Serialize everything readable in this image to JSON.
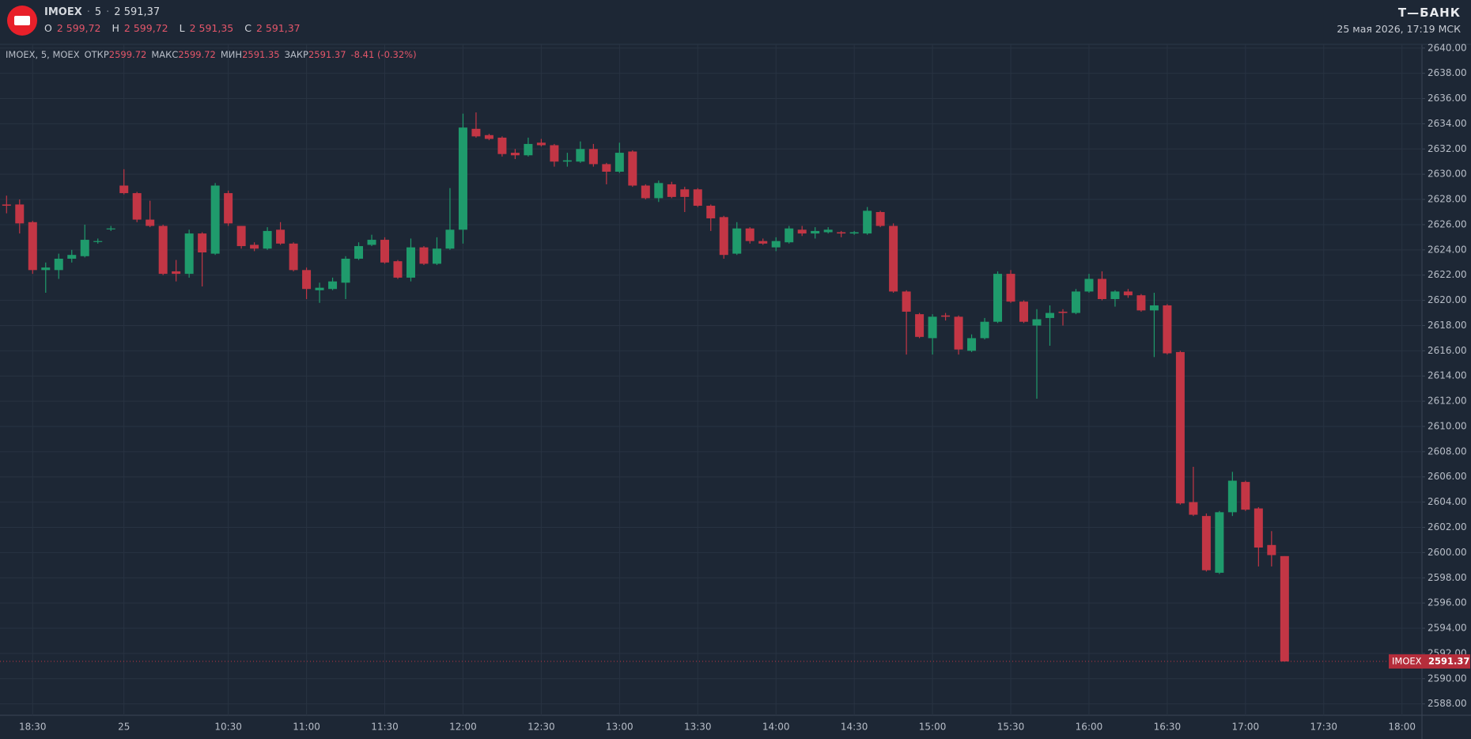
{
  "header": {
    "symbol": "IMOEX",
    "interval": "5",
    "price": "2 591,37",
    "o_label": "O",
    "o_value": "2 599,72",
    "h_label": "H",
    "h_value": "2 599,72",
    "l_label": "L",
    "l_value": "2 591,35",
    "c_label": "C",
    "c_value": "2 591,37",
    "brand": "Т—БАНК",
    "datetime": "25 мая 2026, 17:19 МСК"
  },
  "legend_line": {
    "instrument": "IMOEX, 5, MOEX",
    "open_label": "ОТКР",
    "open": "2599.72",
    "high_label": "МАКС",
    "high": "2599.72",
    "low_label": "МИН",
    "low": "2591.35",
    "close_label": "ЗАКР",
    "close": "2591.37",
    "change": "-8.41 (-0.32%)"
  },
  "price_tag": {
    "symbol": "IMOEX",
    "price": "2591.37"
  },
  "chart_data": {
    "type": "candlestick",
    "up_color": "#1f9b6c",
    "down_color": "#c33645",
    "grid": true,
    "categories": [
      null,
      null,
      "18:30",
      null,
      null,
      null,
      null,
      null,
      null,
      "25",
      null,
      null,
      null,
      null,
      null,
      null,
      null,
      "10:30",
      null,
      null,
      null,
      null,
      null,
      "11:00",
      null,
      null,
      null,
      null,
      null,
      "11:30",
      null,
      null,
      null,
      null,
      null,
      "12:00",
      null,
      null,
      null,
      null,
      null,
      "12:30",
      null,
      null,
      null,
      null,
      null,
      "13:00",
      null,
      null,
      null,
      null,
      null,
      "13:30",
      null,
      null,
      null,
      null,
      null,
      "14:00",
      null,
      null,
      null,
      null,
      null,
      "14:30",
      null,
      null,
      null,
      null,
      null,
      "15:00",
      null,
      null,
      null,
      null,
      null,
      "15:30",
      null,
      null,
      null,
      null,
      null,
      "16:00",
      null,
      null,
      null,
      null,
      null,
      "16:30",
      null,
      null,
      null,
      null,
      null,
      "17:00",
      null,
      null,
      null,
      null,
      null,
      "17:30",
      null,
      null,
      null,
      null,
      null,
      "18:00"
    ],
    "open": [
      2627.6,
      2627.6,
      2626.2,
      2622.4,
      2622.4,
      2623.3,
      2623.5,
      2624.7,
      2625.7,
      2629.1,
      2628.5,
      2626.4,
      2625.9,
      2622.3,
      2622.1,
      2625.3,
      2623.7,
      2628.5,
      2625.9,
      2624.4,
      2624.1,
      2625.6,
      2624.5,
      2622.4,
      2620.8,
      2620.9,
      2621.4,
      2623.3,
      2624.4,
      2624.8,
      2623.1,
      2621.8,
      2624.2,
      2622.9,
      2624.1,
      2625.6,
      2633.6,
      2633.1,
      2632.9,
      2631.7,
      2631.5,
      2632.5,
      2632.3,
      2631.0,
      2631.0,
      2632.0,
      2630.8,
      2630.2,
      2631.8,
      2629.1,
      2628.1,
      2629.2,
      2628.8,
      2628.8,
      2627.5,
      2626.6,
      2623.7,
      2625.7,
      2624.7,
      2624.2,
      2624.6,
      2625.6,
      2625.3,
      2625.4,
      2625.4,
      2625.3,
      2625.3,
      2627.0,
      2625.9,
      2620.7,
      2618.9,
      2617.0,
      2618.8,
      2618.7,
      2616.0,
      2617.0,
      2618.3,
      2622.1,
      2619.9,
      2618.0,
      2618.6,
      2619.1,
      2619.0,
      2620.7,
      2621.7,
      2620.1,
      2620.7,
      2620.4,
      2619.2,
      2619.6,
      2615.9,
      2604.0,
      2602.9,
      2598.4,
      2603.2,
      2605.6,
      2603.5,
      2600.6,
      2599.72,
      null,
      null,
      null,
      null,
      null,
      null,
      null,
      null,
      null
    ],
    "high": [
      2628.3,
      2628.0,
      2626.3,
      2623.0,
      2623.7,
      2624.0,
      2626.0,
      2624.9,
      2625.9,
      2630.4,
      2628.6,
      2627.9,
      2626.0,
      2623.2,
      2625.6,
      2625.4,
      2629.3,
      2628.7,
      2625.9,
      2624.6,
      2625.8,
      2626.2,
      2624.6,
      2622.6,
      2621.4,
      2621.8,
      2623.5,
      2624.6,
      2625.2,
      2625.0,
      2623.2,
      2624.9,
      2624.3,
      2625.0,
      2628.9,
      2634.8,
      2634.9,
      2633.2,
      2633.0,
      2632.0,
      2632.9,
      2632.8,
      2632.4,
      2631.7,
      2632.6,
      2632.4,
      2630.9,
      2632.5,
      2631.9,
      2629.2,
      2629.5,
      2629.4,
      2629.0,
      2628.9,
      2627.6,
      2626.7,
      2626.2,
      2625.8,
      2624.9,
      2625.0,
      2625.9,
      2625.9,
      2625.8,
      2625.8,
      2625.5,
      2625.5,
      2627.4,
      2627.1,
      2626.1,
      2620.8,
      2619.0,
      2618.9,
      2619.0,
      2618.8,
      2617.3,
      2618.6,
      2622.3,
      2622.4,
      2620.0,
      2619.3,
      2619.6,
      2619.3,
      2620.9,
      2622.1,
      2622.3,
      2620.8,
      2620.9,
      2620.5,
      2620.6,
      2619.7,
      2616.0,
      2606.8,
      2603.1,
      2603.3,
      2606.4,
      2605.7,
      2603.6,
      2601.7,
      2599.72,
      null,
      null,
      null,
      null,
      null,
      null,
      null,
      null,
      null
    ],
    "low": [
      2626.9,
      2625.3,
      2622.1,
      2620.6,
      2621.7,
      2623.0,
      2623.4,
      2624.5,
      2625.5,
      2628.4,
      2626.2,
      2625.8,
      2622.0,
      2621.5,
      2621.8,
      2621.1,
      2623.6,
      2625.9,
      2624.1,
      2623.9,
      2624.0,
      2624.4,
      2622.3,
      2620.1,
      2619.8,
      2620.8,
      2620.1,
      2623.2,
      2624.3,
      2622.9,
      2621.7,
      2621.5,
      2622.8,
      2622.8,
      2624.0,
      2624.5,
      2632.9,
      2632.7,
      2631.4,
      2631.2,
      2631.4,
      2632.2,
      2630.6,
      2630.6,
      2630.9,
      2630.6,
      2629.2,
      2630.1,
      2629.0,
      2628.0,
      2627.8,
      2628.1,
      2627.0,
      2627.4,
      2625.5,
      2623.3,
      2623.6,
      2624.5,
      2624.4,
      2623.9,
      2624.5,
      2625.1,
      2624.9,
      2625.3,
      2625.0,
      2625.2,
      2625.2,
      2625.8,
      2620.6,
      2615.7,
      2617.0,
      2615.7,
      2618.4,
      2615.7,
      2615.9,
      2616.9,
      2618.2,
      2619.8,
      2618.2,
      2612.2,
      2616.4,
      2618.0,
      2618.9,
      2620.6,
      2620.0,
      2619.5,
      2620.2,
      2619.1,
      2615.5,
      2615.7,
      2603.8,
      2602.9,
      2598.5,
      2598.3,
      2602.9,
      2603.3,
      2598.9,
      2598.9,
      2591.35,
      null,
      null,
      null,
      null,
      null,
      null,
      null,
      null,
      null
    ],
    "close": [
      2627.5,
      2626.1,
      2622.4,
      2622.6,
      2623.3,
      2623.6,
      2624.8,
      2624.7,
      2625.7,
      2628.5,
      2626.4,
      2625.9,
      2622.1,
      2622.1,
      2625.3,
      2623.8,
      2629.1,
      2626.1,
      2624.3,
      2624.1,
      2625.5,
      2624.5,
      2622.4,
      2620.9,
      2621.0,
      2621.5,
      2623.3,
      2624.3,
      2624.8,
      2623.0,
      2621.8,
      2624.2,
      2622.9,
      2624.1,
      2625.6,
      2633.7,
      2633.0,
      2632.8,
      2631.6,
      2631.5,
      2632.4,
      2632.3,
      2631.0,
      2631.1,
      2632.0,
      2630.8,
      2630.2,
      2631.7,
      2629.1,
      2628.1,
      2629.3,
      2628.2,
      2628.2,
      2627.5,
      2626.5,
      2623.6,
      2625.7,
      2624.7,
      2624.5,
      2624.7,
      2625.7,
      2625.3,
      2625.5,
      2625.6,
      2625.3,
      2625.4,
      2627.1,
      2625.9,
      2620.7,
      2619.1,
      2617.1,
      2618.7,
      2618.7,
      2616.1,
      2617.0,
      2618.3,
      2622.1,
      2619.9,
      2618.3,
      2618.5,
      2619.0,
      2619.0,
      2620.7,
      2621.7,
      2620.1,
      2620.7,
      2620.4,
      2619.2,
      2619.6,
      2615.8,
      2603.9,
      2603.0,
      2598.6,
      2603.2,
      2605.7,
      2603.4,
      2600.4,
      2599.8,
      2591.37,
      null,
      null,
      null,
      null,
      null,
      null,
      null,
      null,
      null
    ],
    "ylim": [
      2587.1,
      2640.3
    ],
    "yticks": [
      {
        "value": 2588,
        "label": "2588.00"
      },
      {
        "value": 2590,
        "label": "2590.00"
      },
      {
        "value": 2592,
        "label": "2592.00"
      },
      {
        "value": 2594,
        "label": "2594.00"
      },
      {
        "value": 2596,
        "label": "2596.00"
      },
      {
        "value": 2598,
        "label": "2598.00"
      },
      {
        "value": 2600,
        "label": "2600.00"
      },
      {
        "value": 2602,
        "label": "2602.00"
      },
      {
        "value": 2604,
        "label": "2604.00"
      },
      {
        "value": 2606,
        "label": "2606.00"
      },
      {
        "value": 2608,
        "label": "2608.00"
      },
      {
        "value": 2610,
        "label": "2610.00"
      },
      {
        "value": 2612,
        "label": "2612.00"
      },
      {
        "value": 2614,
        "label": "2614.00"
      },
      {
        "value": 2616,
        "label": "2616.00"
      },
      {
        "value": 2618,
        "label": "2618.00"
      },
      {
        "value": 2620,
        "label": "2620.00"
      },
      {
        "value": 2622,
        "label": "2622.00"
      },
      {
        "value": 2624,
        "label": "2624.00"
      },
      {
        "value": 2626,
        "label": "2626.00"
      },
      {
        "value": 2628,
        "label": "2628.00"
      },
      {
        "value": 2630,
        "label": "2630.00"
      },
      {
        "value": 2632,
        "label": "2632.00"
      },
      {
        "value": 2634,
        "label": "2634.00"
      },
      {
        "value": 2636,
        "label": "2636.00"
      },
      {
        "value": 2638,
        "label": "2638.00"
      },
      {
        "value": 2640,
        "label": "2640.00"
      }
    ]
  }
}
